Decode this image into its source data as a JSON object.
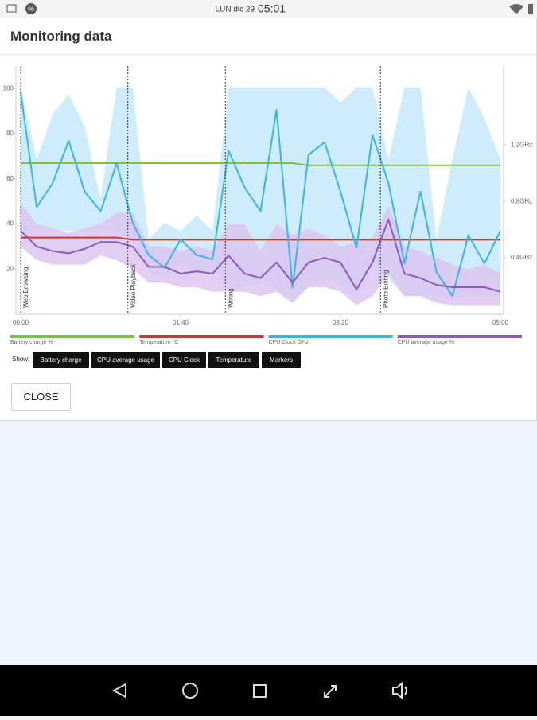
{
  "status_bar": {
    "badge": "66",
    "date": "LUN dic 29",
    "time": "05:01"
  },
  "dialog": {
    "title": "Monitoring data",
    "show_label": "Show:",
    "toggles": [
      "Battery charge",
      "CPU average usage",
      "CPU Clock",
      "Temperature",
      "Markers"
    ],
    "close": "CLOSE"
  },
  "chart_data": {
    "type": "line",
    "x": [
      0,
      10,
      20,
      30,
      40,
      50,
      60,
      70,
      80,
      90,
      100,
      110,
      120,
      130,
      140,
      150,
      160,
      170,
      180,
      190,
      200,
      210,
      220,
      230,
      240,
      250,
      260,
      270,
      280,
      290,
      300
    ],
    "xlim": [
      -3,
      302
    ],
    "xticks": [
      {
        "value": 0,
        "label": "00:00"
      },
      {
        "value": 100,
        "label": "01:40"
      },
      {
        "value": 200,
        "label": "03:20"
      },
      {
        "value": 300,
        "label": "05:00"
      }
    ],
    "ylim": [
      0,
      110
    ],
    "yticks": [
      20,
      40,
      60,
      80,
      100
    ],
    "y2lim": [
      0,
      1.76
    ],
    "y2ticks": [
      {
        "value": 0.4,
        "label": "0.4GHz"
      },
      {
        "value": 0.8,
        "label": "0.8GHz"
      },
      {
        "value": 1.2,
        "label": "1.2GHz"
      }
    ],
    "grid": false,
    "markers": [
      {
        "label": "Web Browsing",
        "x": 0
      },
      {
        "label": "Video Playback",
        "x": 67
      },
      {
        "label": "Writing",
        "x": 128
      },
      {
        "label": "Photo Editing",
        "x": 225
      }
    ],
    "series": [
      {
        "name": "Battery charge %",
        "color": "#7cc243",
        "values": [
          67,
          67,
          67,
          67,
          67,
          67,
          67,
          67,
          67,
          67,
          67,
          67,
          67,
          67,
          67,
          67,
          67,
          67,
          66,
          66,
          66,
          66,
          66,
          66,
          66,
          66,
          66,
          66,
          66,
          66,
          66
        ]
      },
      {
        "name": "Temperature °C",
        "color": "#c9393a",
        "values": [
          34,
          34,
          34,
          34,
          34,
          34,
          34,
          33,
          33,
          33,
          33,
          33,
          33,
          33,
          33,
          33,
          33,
          33,
          33,
          33,
          33,
          33,
          33,
          33,
          33,
          33,
          33,
          33,
          33,
          33,
          33
        ]
      },
      {
        "name": "CPU Clock GHz",
        "color": "#3cb4e4",
        "axis": "y2",
        "band_color": "#c6e9fb",
        "values": [
          1.57,
          0.76,
          0.93,
          1.23,
          0.87,
          0.73,
          1.07,
          0.65,
          0.42,
          0.33,
          0.53,
          0.42,
          0.39,
          1.16,
          0.9,
          0.73,
          1.45,
          0.19,
          1.13,
          1.22,
          0.87,
          0.47,
          1.27,
          0.93,
          0.36,
          0.87,
          0.3,
          0.13,
          0.56,
          0.36,
          0.59
        ],
        "upper": [
          1.61,
          1.1,
          1.42,
          1.56,
          1.33,
          0.82,
          1.61,
          1.61,
          0.53,
          0.65,
          0.59,
          0.7,
          0.59,
          1.61,
          1.61,
          1.61,
          1.61,
          1.61,
          1.61,
          1.61,
          1.5,
          1.61,
          1.61,
          1.1,
          1.61,
          1.61,
          0.53,
          1.1,
          1.61,
          1.39,
          1.1
        ],
        "lower": [
          0.59,
          0.59,
          0.59,
          0.59,
          0.59,
          0.59,
          0.59,
          0.53,
          0.3,
          0.25,
          0.36,
          0.3,
          0.3,
          0.19,
          0.19,
          0.22,
          0.19,
          0.1,
          0.19,
          0.25,
          0.19,
          0.13,
          0.36,
          0.25,
          0.13,
          0.13,
          0.13,
          0.1,
          0.13,
          0.13,
          0.13
        ]
      },
      {
        "name": "CPU average usage %",
        "color": "#8a5bbf",
        "band_color": "#dcc6f0",
        "values": [
          37,
          30,
          28,
          27,
          29,
          32,
          32,
          30,
          21,
          21,
          18,
          19,
          18,
          26,
          18,
          16,
          23,
          14,
          23,
          25,
          23,
          11,
          23,
          42,
          18,
          16,
          13,
          12,
          12,
          12,
          10
        ],
        "upper": [
          49,
          40,
          38,
          36,
          38,
          40,
          45,
          45,
          30,
          30,
          28,
          30,
          28,
          40,
          40,
          28,
          40,
          35,
          38,
          35,
          30,
          32,
          34,
          48,
          30,
          28,
          25,
          22,
          20,
          22,
          18
        ],
        "lower": [
          30,
          24,
          22,
          22,
          22,
          26,
          24,
          20,
          14,
          14,
          12,
          12,
          10,
          10,
          10,
          8,
          10,
          5,
          12,
          12,
          10,
          4,
          8,
          18,
          8,
          8,
          5,
          4,
          4,
          4,
          4
        ]
      }
    ]
  }
}
